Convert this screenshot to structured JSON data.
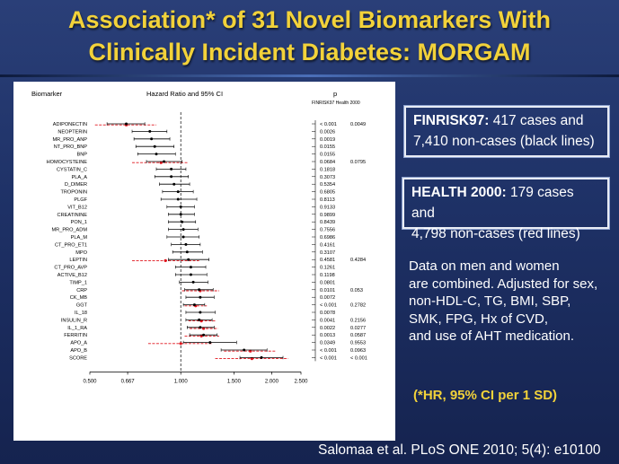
{
  "slide": {
    "title_line1": "Association* of 31 Novel Biomarkers With",
    "title_line2": "Clinically Incident Diabetes: MORGAM",
    "box1": {
      "label": "FINRISK97:",
      "text1": " 417 cases and",
      "text2": "7,410 non-cases (black lines)"
    },
    "box2": {
      "label": "HEALTH 2000:",
      "text1": " 179 cases and",
      "text2": "4,798 non-cases (red lines)"
    },
    "notes": [
      "Data on men and women",
      "are combined. Adjusted for sex,",
      "non-HDL-C, TG, BMI, SBP,",
      "SMK, FPG, Hx of CVD,",
      "and use of AHT medication."
    ],
    "hr_note": "(*HR, 95% CI per 1 SD)",
    "citation": "Salomaa et al. PLoS ONE 2010; 5(4): e10100"
  },
  "chart_data": {
    "type": "forest",
    "header_biomarker": "Biomarker",
    "header_hr": "Hazard Ratio and 95% CI",
    "header_p": "p",
    "header_p_cols": "FINRISK97  Health 2000",
    "xscale": "log",
    "xlim": [
      0.5,
      2.5
    ],
    "xticks": [
      0.5,
      0.667,
      1.0,
      1.5,
      2.0,
      2.5
    ],
    "xtick_labels": [
      "0.500",
      "0.667",
      "1.000",
      "1.500",
      "2.000",
      "2.500"
    ],
    "reference_line": 1.0,
    "colors": {
      "finrisk": "#000000",
      "health": "#e0141c"
    },
    "rows": [
      {
        "name": "ADIPONECTIN",
        "f": [
          0.66,
          0.57,
          0.76
        ],
        "h": [
          0.66,
          0.52,
          0.83
        ],
        "pf": "< 0.001",
        "ph": "0.0049"
      },
      {
        "name": "NEOPTERIN",
        "f": [
          0.79,
          0.69,
          0.9
        ],
        "h": null,
        "pf": "0.0026",
        "ph": ""
      },
      {
        "name": "MR_PRO_ANP",
        "f": [
          0.8,
          0.7,
          0.92
        ],
        "h": null,
        "pf": "0.0019",
        "ph": ""
      },
      {
        "name": "NT_PRO_BNP",
        "f": [
          0.82,
          0.71,
          0.95
        ],
        "h": null,
        "pf": "0.0155",
        "ph": ""
      },
      {
        "name": "BNP",
        "f": [
          0.83,
          0.72,
          0.96
        ],
        "h": null,
        "pf": "0.0155",
        "ph": ""
      },
      {
        "name": "HOMOCYSTEINE",
        "f": [
          0.88,
          0.77,
          1.01
        ],
        "h": [
          0.86,
          0.69,
          1.06
        ],
        "pf": "0.0684",
        "ph": "0.0795"
      },
      {
        "name": "CYSTATIN_C",
        "f": [
          0.93,
          0.83,
          1.04
        ],
        "h": null,
        "pf": "0.1818",
        "ph": ""
      },
      {
        "name": "PLA_A",
        "f": [
          0.93,
          0.82,
          1.06
        ],
        "h": null,
        "pf": "0.3073",
        "ph": ""
      },
      {
        "name": "D_DIMER",
        "f": [
          0.95,
          0.85,
          1.07
        ],
        "h": null,
        "pf": "0.5354",
        "ph": ""
      },
      {
        "name": "TROPONIN",
        "f": [
          0.98,
          0.87,
          1.1
        ],
        "h": null,
        "pf": "0.6805",
        "ph": ""
      },
      {
        "name": "PLGF",
        "f": [
          0.98,
          0.86,
          1.13
        ],
        "h": null,
        "pf": "0.8113",
        "ph": ""
      },
      {
        "name": "VIT_B12",
        "f": [
          1.0,
          0.9,
          1.11
        ],
        "h": null,
        "pf": "0.9133",
        "ph": ""
      },
      {
        "name": "CREATININE",
        "f": [
          1.0,
          0.91,
          1.11
        ],
        "h": null,
        "pf": "0.9899",
        "ph": ""
      },
      {
        "name": "PON_1",
        "f": [
          1.01,
          0.91,
          1.12
        ],
        "h": null,
        "pf": "0.8439",
        "ph": ""
      },
      {
        "name": "MR_PRO_ADM",
        "f": [
          1.02,
          0.91,
          1.14
        ],
        "h": null,
        "pf": "0.7556",
        "ph": ""
      },
      {
        "name": "PLA_M",
        "f": [
          1.02,
          0.9,
          1.15
        ],
        "h": null,
        "pf": "0.6986",
        "ph": ""
      },
      {
        "name": "CT_PRO_ET1",
        "f": [
          1.04,
          0.93,
          1.16
        ],
        "h": null,
        "pf": "0.4161",
        "ph": ""
      },
      {
        "name": "MPO",
        "f": [
          1.05,
          0.94,
          1.18
        ],
        "h": null,
        "pf": "0.3107",
        "ph": ""
      },
      {
        "name": "LEPTIN",
        "f": [
          1.06,
          0.91,
          1.24
        ],
        "h": [
          0.89,
          0.69,
          1.15
        ],
        "pf": "0.4581",
        "ph": "0.4284"
      },
      {
        "name": "CT_PRO_AVP",
        "f": [
          1.08,
          0.96,
          1.21
        ],
        "h": null,
        "pf": "0.1261",
        "ph": ""
      },
      {
        "name": "ACTIVE_B12",
        "f": [
          1.08,
          0.96,
          1.22
        ],
        "h": null,
        "pf": "0.1198",
        "ph": ""
      },
      {
        "name": "TIMP_1",
        "f": [
          1.1,
          0.99,
          1.23
        ],
        "h": null,
        "pf": "0.0801",
        "ph": ""
      },
      {
        "name": "CRP",
        "f": [
          1.15,
          1.03,
          1.28
        ],
        "h": [
          1.16,
          1.01,
          1.34
        ],
        "pf": "0.0101",
        "ph": "0.053"
      },
      {
        "name": "CK_MB",
        "f": [
          1.16,
          1.04,
          1.29
        ],
        "h": null,
        "pf": "0.0072",
        "ph": ""
      },
      {
        "name": "GGT",
        "f": [
          1.11,
          1.02,
          1.2
        ],
        "h": [
          1.12,
          1.03,
          1.22
        ],
        "pf": "< 0.001",
        "ph": "0.2782"
      },
      {
        "name": "IL_18",
        "f": [
          1.16,
          1.04,
          1.3
        ],
        "h": null,
        "pf": "0.0078",
        "ph": ""
      },
      {
        "name": "INSULIN_R",
        "f": [
          1.15,
          1.04,
          1.27
        ],
        "h": [
          1.17,
          1.06,
          1.3
        ],
        "pf": "0.0041",
        "ph": "0.2156"
      },
      {
        "name": "IL_1_RA",
        "f": [
          1.16,
          1.05,
          1.29
        ],
        "h": [
          1.19,
          1.07,
          1.33
        ],
        "pf": "0.0022",
        "ph": "0.0277"
      },
      {
        "name": "FERRITIN",
        "f": [
          1.19,
          1.07,
          1.32
        ],
        "h": [
          1.17,
          1.03,
          1.34
        ],
        "pf": "0.0013",
        "ph": "0.0587"
      },
      {
        "name": "APO_A",
        "f": [
          1.25,
          1.02,
          1.53
        ],
        "h": [
          1.0,
          0.78,
          1.27
        ],
        "pf": "0.0349",
        "ph": "0.9553"
      },
      {
        "name": "APO_B",
        "f": [
          1.62,
          1.36,
          1.93
        ],
        "h": [
          1.7,
          1.39,
          2.07
        ],
        "pf": "< 0.001",
        "ph": "0.0963"
      },
      {
        "name": "SCORE",
        "f": [
          1.85,
          1.57,
          2.18
        ],
        "h": [
          1.72,
          1.3,
          2.27
        ],
        "pf": "< 0.001",
        "ph": "< 0.001"
      }
    ]
  }
}
